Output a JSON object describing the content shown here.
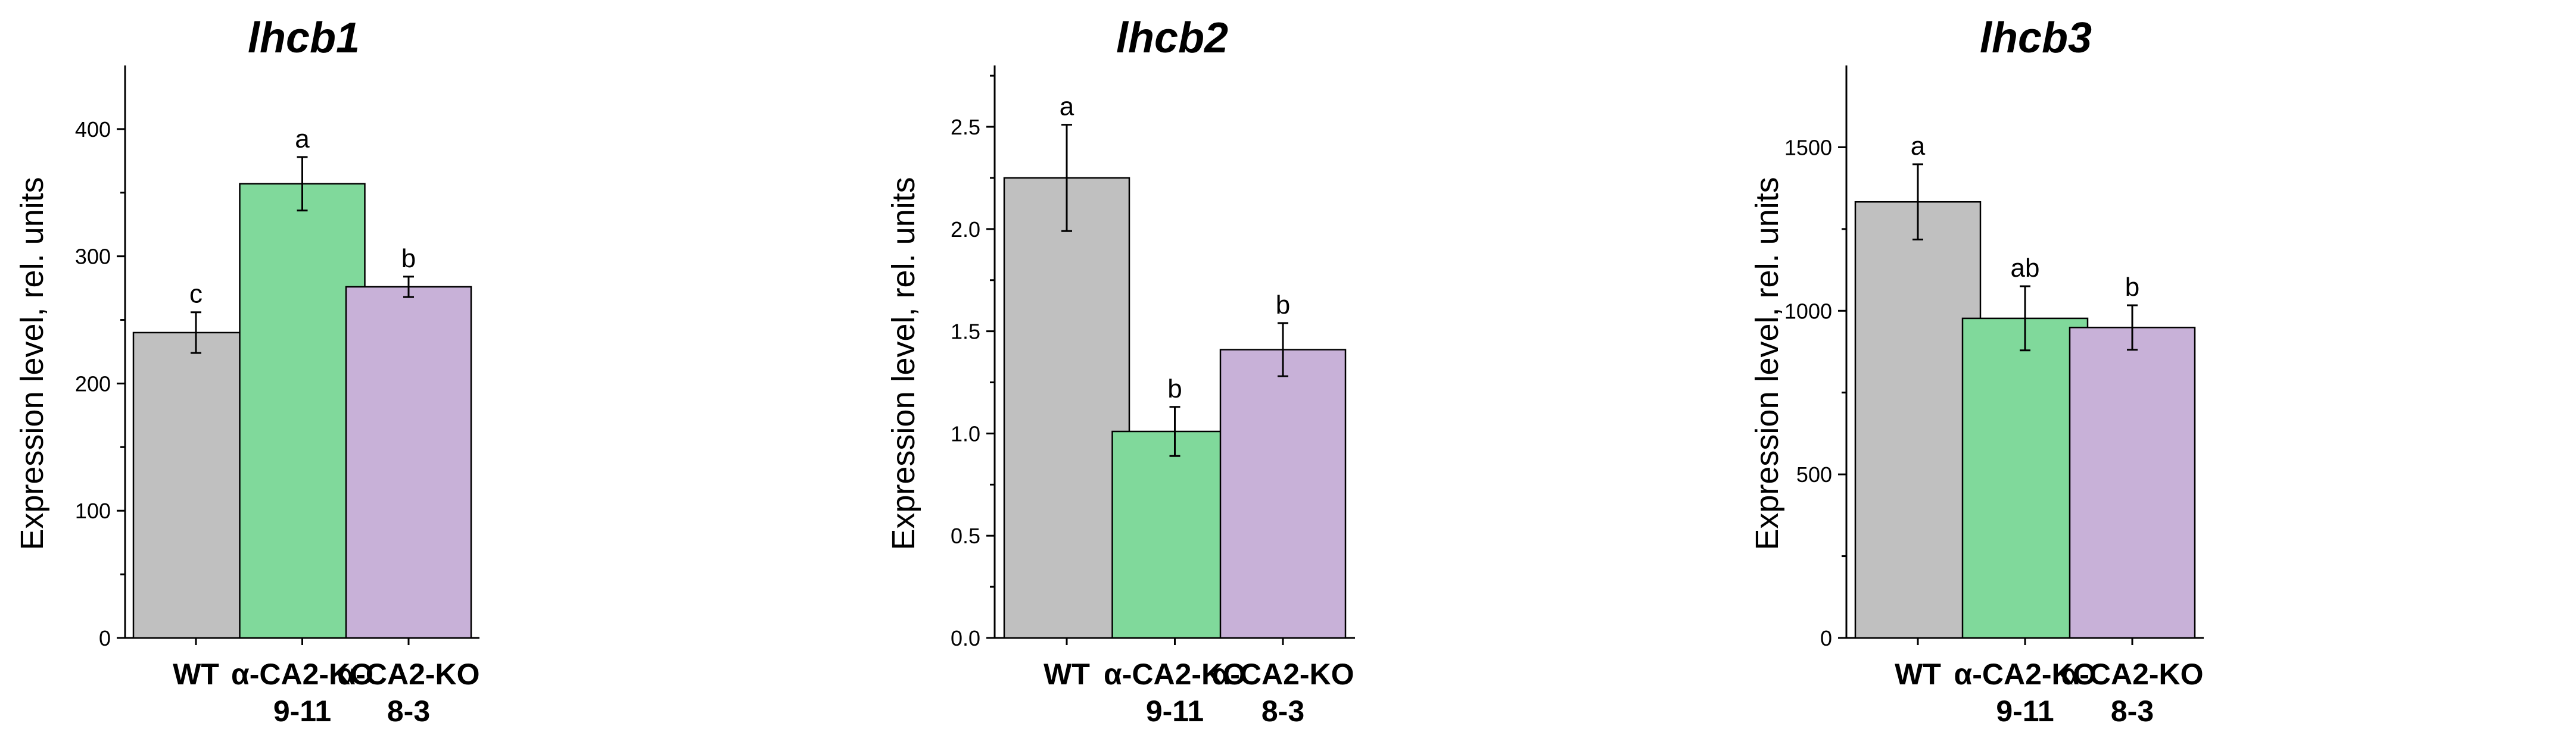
{
  "figure": {
    "categories": [
      [
        "WT"
      ],
      [
        "α-CA2-KO",
        "9-11"
      ],
      [
        "α-CA2-KO",
        "8-3"
      ]
    ],
    "bar_colors": [
      "#c0c0c0",
      "#80d99b",
      "#c8b1d8"
    ]
  },
  "chart_data": [
    {
      "type": "bar",
      "title": "lhcb1",
      "xlabel": "",
      "ylabel": "Expression level, rel. units",
      "categories": [
        "WT",
        "α-CA2-KO 9-11",
        "α-CA2-KO 8-3"
      ],
      "values": [
        240,
        357,
        276
      ],
      "errors": [
        16,
        21,
        8
      ],
      "significance": [
        "c",
        "a",
        "b"
      ],
      "ylim": [
        0,
        450
      ],
      "yticks": [
        0,
        100,
        200,
        300,
        400
      ],
      "ytick_labels": [
        "0",
        "100",
        "200",
        "300",
        "400"
      ]
    },
    {
      "type": "bar",
      "title": "lhcb2",
      "xlabel": "",
      "ylabel": "Expression level, rel. units",
      "categories": [
        "WT",
        "α-CA2-KO 9-11",
        "α-CA2-KO 8-3"
      ],
      "values": [
        2.25,
        1.01,
        1.41
      ],
      "errors": [
        0.26,
        0.12,
        0.13
      ],
      "significance": [
        "a",
        "b",
        "b"
      ],
      "ylim": [
        0,
        2.8
      ],
      "yticks": [
        0,
        0.5,
        1.0,
        1.5,
        2.0,
        2.5
      ],
      "ytick_labels": [
        "0.0",
        "0.5",
        "1.0",
        "1.5",
        "2.0",
        "2.5"
      ]
    },
    {
      "type": "bar",
      "title": "lhcb3",
      "xlabel": "",
      "ylabel": "Expression level, rel. units",
      "categories": [
        "WT",
        "α-CA2-KO 9-11",
        "α-CA2-KO 8-3"
      ],
      "values": [
        1333,
        977,
        949
      ],
      "errors": [
        115,
        98,
        68
      ],
      "significance": [
        "a",
        "ab",
        "b"
      ],
      "ylim": [
        0,
        1750
      ],
      "yticks": [
        0,
        500,
        1000,
        1500
      ],
      "ytick_labels": [
        "0",
        "500",
        "1000",
        "1500"
      ]
    }
  ]
}
